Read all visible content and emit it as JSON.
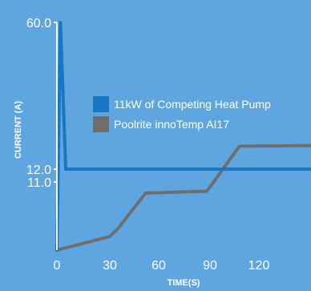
{
  "chart_data": {
    "type": "line",
    "xlabel": "TIME(S)",
    "ylabel": "CURRENT (A)",
    "xlim": [
      0,
      140
    ],
    "ylim": [
      0,
      60
    ],
    "x_ticks": [
      0,
      30,
      60,
      90,
      120
    ],
    "x_tick_labels": [
      "0",
      "30",
      "60",
      "90",
      "120"
    ],
    "y_ticks": [
      11,
      12,
      60
    ],
    "y_tick_labels": [
      "11.0",
      "12.0",
      "60.0"
    ],
    "legend_position": "center",
    "series": [
      {
        "name": "11kW of Competing Heat Pump",
        "color": "#1777c3",
        "x": [
          0,
          2,
          5,
          140
        ],
        "y": [
          0,
          60,
          12,
          12
        ]
      },
      {
        "name": "Poolrite innoTemp AI17",
        "color": "#6e6e6e",
        "x": [
          0,
          30,
          35,
          52,
          88,
          90,
          108,
          140
        ],
        "y": [
          0,
          2.2,
          3.5,
          9.2,
          9.5,
          10.2,
          19.5,
          19.7
        ]
      }
    ]
  }
}
